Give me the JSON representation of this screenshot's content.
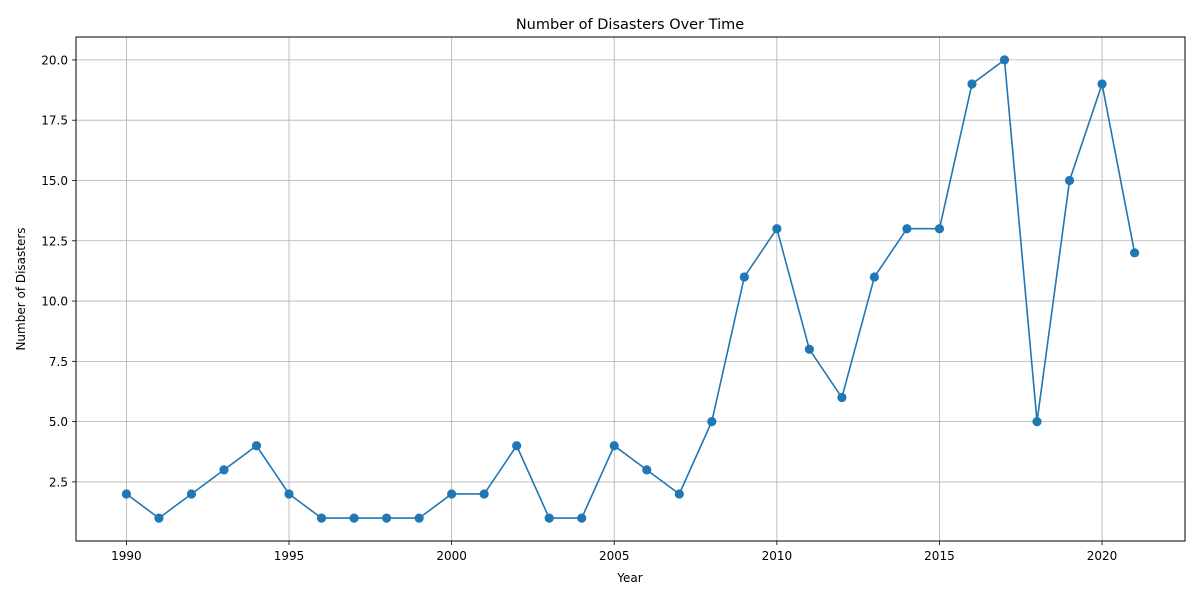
{
  "chart_data": {
    "type": "line",
    "title": "Number of Disasters Over Time",
    "xlabel": "Year",
    "ylabel": "Number of Disasters",
    "x": [
      1990,
      1991,
      1992,
      1993,
      1994,
      1995,
      1996,
      1997,
      1998,
      1999,
      2000,
      2001,
      2002,
      2003,
      2004,
      2005,
      2006,
      2007,
      2008,
      2009,
      2010,
      2011,
      2012,
      2013,
      2014,
      2015,
      2016,
      2017,
      2018,
      2019,
      2020,
      2021
    ],
    "series": [
      {
        "values": [
          2,
          1,
          2,
          3,
          4,
          2,
          1,
          1,
          1,
          1,
          2,
          2,
          4,
          1,
          1,
          4,
          3,
          2,
          5,
          11,
          13,
          8,
          6,
          11,
          13,
          13,
          19,
          20,
          5,
          15,
          19,
          12
        ],
        "color": "#1f77b4",
        "marker": "circle"
      }
    ],
    "xlim": [
      1988.45,
      2022.55
    ],
    "ylim": [
      0.05,
      20.95
    ],
    "xticks": [
      1990,
      1995,
      2000,
      2005,
      2010,
      2015,
      2020
    ],
    "xtick_labels": [
      "1990",
      "1995",
      "2000",
      "2005",
      "2010",
      "2015",
      "2020"
    ],
    "yticks": [
      2.5,
      5.0,
      7.5,
      10.0,
      12.5,
      15.0,
      17.5,
      20.0
    ],
    "ytick_labels": [
      "2.5",
      "5.0",
      "7.5",
      "10.0",
      "12.5",
      "15.0",
      "17.5",
      "20.0"
    ],
    "grid": true,
    "legend": "none"
  }
}
